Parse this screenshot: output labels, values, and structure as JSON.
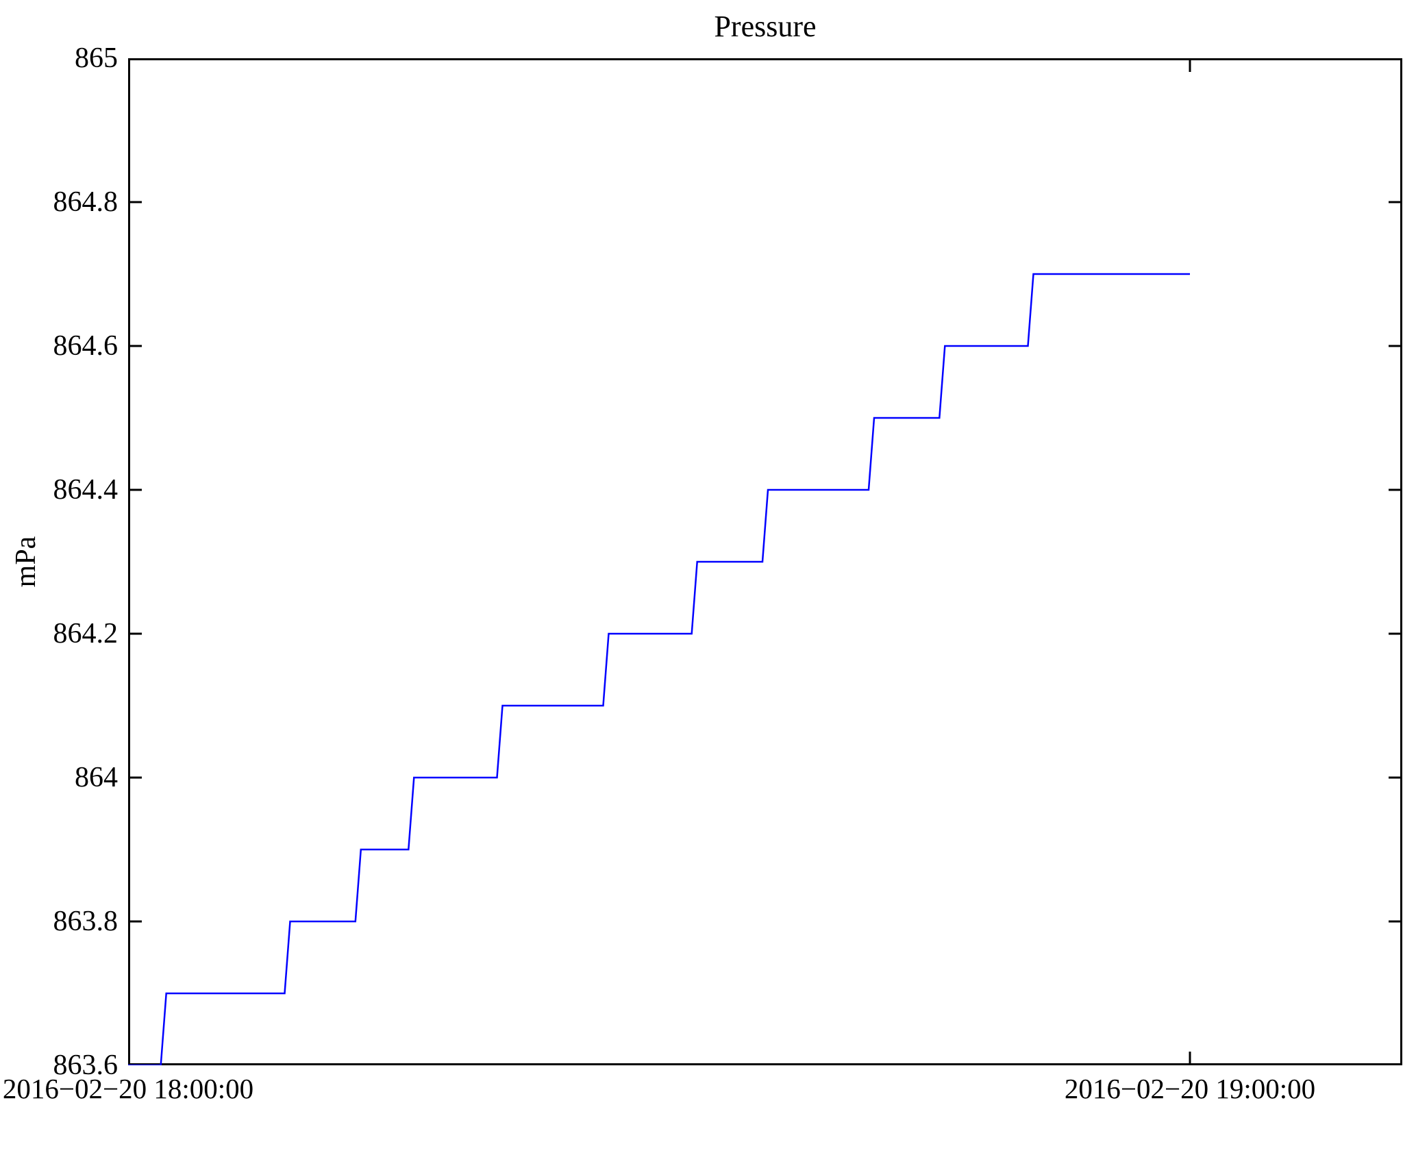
{
  "page": {
    "background_color": "#ffffff",
    "text_color": "#000000"
  },
  "chart_data": {
    "type": "line",
    "line_style": "step-post",
    "title": "Pressure",
    "xlabel": "",
    "ylabel": "mPa",
    "legend": "none",
    "grid": false,
    "line_color": "#0000ff",
    "axis_color": "#000000",
    "ylim": [
      863.6,
      865
    ],
    "x_axis": {
      "range_minutes": [
        0,
        72
      ],
      "ticks": [
        {
          "minute": 0,
          "label": "2016−02−20 18:00:00"
        },
        {
          "minute": 60,
          "label": "2016−02−20 19:00:00"
        }
      ]
    },
    "y_ticks": [
      {
        "value": 865.0,
        "label": "865"
      },
      {
        "value": 864.8,
        "label": "864.8"
      },
      {
        "value": 864.6,
        "label": "864.6"
      },
      {
        "value": 864.4,
        "label": "864.4"
      },
      {
        "value": 864.2,
        "label": "864.2"
      },
      {
        "value": 864.0,
        "label": "864"
      },
      {
        "value": 863.8,
        "label": "863.8"
      },
      {
        "value": 863.6,
        "label": "863.6"
      }
    ],
    "series": [
      {
        "name": "Pressure",
        "unit": "mPa",
        "step_points": [
          {
            "time": "18:00",
            "minute": 0,
            "value": 863.6
          },
          {
            "time": "18:02",
            "minute": 2,
            "value": 863.7
          },
          {
            "time": "18:09",
            "minute": 9,
            "value": 863.8
          },
          {
            "time": "18:13",
            "minute": 13,
            "value": 863.9
          },
          {
            "time": "18:16",
            "minute": 16,
            "value": 864.0
          },
          {
            "time": "18:21",
            "minute": 21,
            "value": 864.1
          },
          {
            "time": "18:27",
            "minute": 27,
            "value": 864.2
          },
          {
            "time": "18:32",
            "minute": 32,
            "value": 864.3
          },
          {
            "time": "18:36",
            "minute": 36,
            "value": 864.4
          },
          {
            "time": "18:42",
            "minute": 42,
            "value": 864.5
          },
          {
            "time": "18:46",
            "minute": 46,
            "value": 864.6
          },
          {
            "time": "18:51",
            "minute": 51,
            "value": 864.7
          },
          {
            "time": "19:00",
            "minute": 60,
            "value": 864.7
          }
        ]
      }
    ]
  }
}
